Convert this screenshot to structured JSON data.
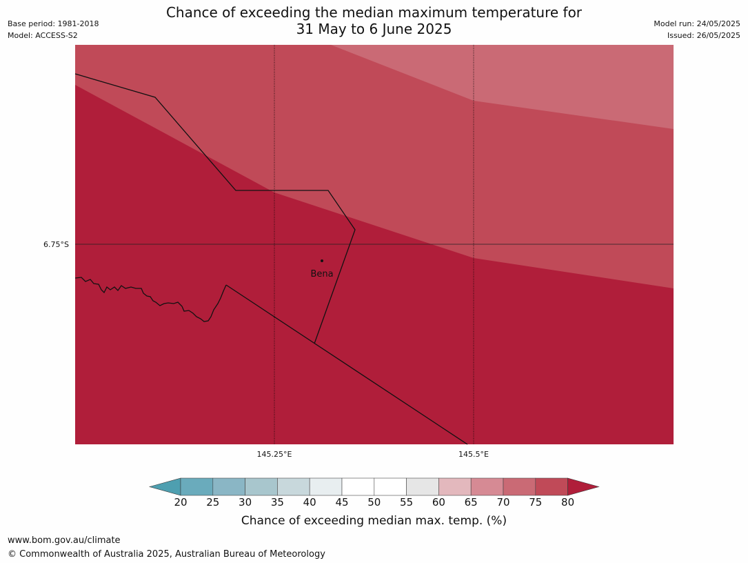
{
  "header": {
    "title_line1": "Chance of exceeding the median maximum temperature for",
    "title_line2": "31 May to 6 June 2025",
    "base_period": "Base period: 1981-2018",
    "model": "Model: ACCESS-S2",
    "model_run": "Model run: 24/05/2025",
    "issued": "Issued: 26/05/2025"
  },
  "map": {
    "lat_label": "6.75°S",
    "lon_labels": [
      "145.25°E",
      "145.5°E"
    ],
    "place_label": "Bena",
    "zone_colors": {
      "over_80": "#b01e3a",
      "75_80": "#c04a58",
      "70_75": "#ca6a75"
    }
  },
  "colorbar": {
    "title": "Chance of exceeding median max. temp. (%)",
    "ticks": [
      "20",
      "25",
      "30",
      "35",
      "40",
      "45",
      "50",
      "55",
      "60",
      "65",
      "70",
      "75",
      "80"
    ],
    "colors": [
      "#4e9fb0",
      "#6aabbc",
      "#8ab6c5",
      "#a8c6cd",
      "#c8d8dc",
      "#e8eef0",
      "#ffffff",
      "#ffffff",
      "#e6e6e6",
      "#e3b8bd",
      "#d68a94",
      "#ca6a75",
      "#c04a58",
      "#b01e3a"
    ]
  },
  "footer": {
    "url": "www.bom.gov.au/climate",
    "copyright": "© Commonwealth of Australia 2025, Australian Bureau of Meteorology"
  }
}
